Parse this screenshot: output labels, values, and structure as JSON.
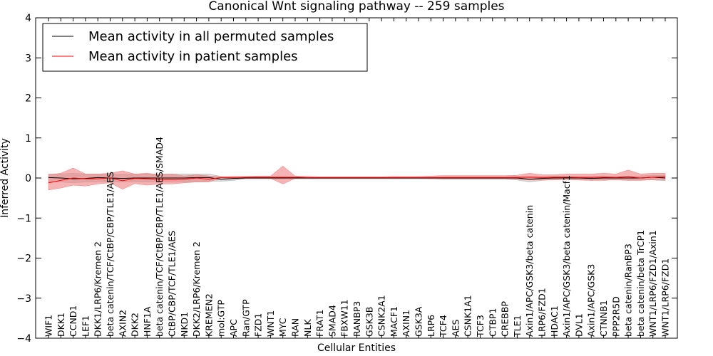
{
  "chart_data": {
    "type": "line",
    "title": "Canonical Wnt signaling pathway -- 259 samples",
    "xlabel": "Cellular Entities",
    "ylabel": "Inferred Activity",
    "ylim": [
      -4,
      4
    ],
    "yticks": [
      4,
      3,
      2,
      1,
      0,
      -1,
      -2,
      -3,
      -4
    ],
    "ytick_labels": [
      "4",
      "3",
      "2",
      "1",
      "0",
      "−1",
      "−2",
      "−3",
      "−4"
    ],
    "legend_position": "top-left",
    "grid": false,
    "categories": [
      "WIF1",
      "DKK1",
      "CCND1",
      "LEF1",
      "DKK1/LRP6/Kremen 2",
      "beta catenin/TCF/CtBP/CBP/TLE1/AES",
      "AXIN2",
      "DKK2",
      "HNF1A",
      "beta catenin/TCF/CtBP/CBP/TLE1/AES/SMAD4",
      "CtBP/CBP/TCF/TLE1/AES",
      "NKD1",
      "DKK2/LRP6/Kremen 2",
      "KREMEN2",
      "mol:GTP",
      "APC",
      "Ran/GTP",
      "FZD1",
      "WNT1",
      "MYC",
      "RAN",
      "NLK",
      "FRAT1",
      "SMAD4",
      "FBXW11",
      "RANBP3",
      "GSK3B",
      "CSNK2A1",
      "MACF1",
      "AXIN1",
      "GSK3A",
      "LRP6",
      "TCF4",
      "AES",
      "CSNK1A1",
      "TCF3",
      "CTBP1",
      "CREBBP",
      "TLE1",
      "Axin1/APC/GSK3/beta catenin",
      "LRP6/FZD1",
      "HDAC1",
      "Axin1/APC/GSK3/beta catenin/Macf1",
      "DVL1",
      "Axin1/APC/GSK3",
      "CTNNB1",
      "PPP2R5D",
      "beta catenin/RanBP3",
      "beta catenin/beta TrCP1",
      "WNT1/LRP6/FZD1/Axin1",
      "WNT1/LRP6/FZD1"
    ],
    "series": [
      {
        "name": "Mean activity in all permuted samples",
        "color": "#000000",
        "fill": "#b0b0b0",
        "values": [
          0.01,
          0.0,
          -0.02,
          -0.01,
          0.01,
          0.0,
          -0.01,
          0.0,
          0.0,
          0.0,
          0.0,
          0.0,
          0.01,
          0.01,
          -0.03,
          -0.01,
          0.0,
          0.0,
          0.0,
          0.0,
          0.0,
          0.0,
          0.0,
          0.0,
          0.0,
          0.0,
          0.0,
          0.0,
          0.0,
          0.0,
          0.0,
          0.0,
          0.0,
          0.0,
          0.0,
          0.0,
          0.0,
          0.0,
          0.0,
          -0.03,
          -0.01,
          0.0,
          0.0,
          0.0,
          -0.01,
          0.0,
          0.0,
          0.0,
          0.0,
          0.02,
          0.0
        ],
        "lower": [
          -0.1,
          -0.1,
          -0.12,
          -0.1,
          -0.1,
          -0.1,
          -0.1,
          -0.1,
          -0.1,
          -0.1,
          -0.1,
          -0.1,
          -0.1,
          -0.08,
          -0.08,
          -0.06,
          -0.02,
          -0.02,
          -0.02,
          -0.02,
          -0.02,
          -0.02,
          -0.02,
          -0.02,
          -0.02,
          -0.02,
          -0.02,
          -0.02,
          -0.02,
          -0.02,
          -0.02,
          -0.02,
          -0.03,
          -0.03,
          -0.03,
          -0.03,
          -0.03,
          -0.03,
          -0.05,
          -0.1,
          -0.06,
          -0.04,
          -0.04,
          -0.05,
          -0.06,
          -0.05,
          -0.05,
          -0.06,
          -0.05,
          -0.05,
          -0.07
        ],
        "upper": [
          0.1,
          0.1,
          0.12,
          0.1,
          0.1,
          0.1,
          0.1,
          0.1,
          0.1,
          0.1,
          0.1,
          0.1,
          0.1,
          0.1,
          0.04,
          0.03,
          0.02,
          0.02,
          0.02,
          0.02,
          0.02,
          0.02,
          0.02,
          0.02,
          0.02,
          0.02,
          0.02,
          0.02,
          0.02,
          0.02,
          0.02,
          0.02,
          0.03,
          0.03,
          0.03,
          0.03,
          0.03,
          0.03,
          0.05,
          0.04,
          0.04,
          0.04,
          0.04,
          0.05,
          0.05,
          0.05,
          0.05,
          0.05,
          0.05,
          0.07,
          0.07
        ]
      },
      {
        "name": "Mean activity in patient samples",
        "color": "#ff0000",
        "fill": "#f08080",
        "values": [
          -0.12,
          -0.06,
          0.0,
          -0.02,
          -0.02,
          0.0,
          -0.07,
          -0.01,
          -0.02,
          -0.04,
          -0.04,
          -0.03,
          0.0,
          -0.03,
          0.01,
          0.01,
          0.02,
          0.02,
          0.02,
          0.02,
          0.02,
          0.01,
          0.01,
          0.01,
          0.01,
          0.01,
          0.01,
          0.01,
          0.01,
          0.01,
          0.01,
          0.01,
          0.01,
          0.01,
          0.01,
          0.01,
          0.01,
          0.01,
          0.01,
          0.02,
          0.01,
          0.02,
          0.02,
          0.01,
          0.01,
          0.02,
          0.01,
          0.03,
          0.0,
          0.02,
          0.03
        ],
        "lower": [
          -0.3,
          -0.25,
          -0.18,
          -0.2,
          -0.15,
          -0.12,
          -0.28,
          -0.14,
          -0.18,
          -0.15,
          -0.15,
          -0.12,
          -0.1,
          -0.1,
          0.0,
          -0.02,
          -0.01,
          -0.01,
          -0.01,
          -0.15,
          -0.01,
          -0.01,
          -0.01,
          -0.01,
          -0.01,
          -0.01,
          -0.01,
          -0.01,
          -0.01,
          -0.01,
          -0.01,
          -0.02,
          -0.02,
          -0.02,
          -0.02,
          -0.02,
          -0.02,
          -0.02,
          -0.03,
          -0.05,
          -0.05,
          -0.05,
          -0.04,
          -0.05,
          -0.06,
          -0.06,
          -0.04,
          -0.06,
          -0.06,
          -0.04,
          -0.04
        ],
        "upper": [
          0.08,
          0.12,
          0.25,
          0.1,
          0.1,
          0.12,
          0.18,
          0.1,
          0.12,
          0.08,
          0.1,
          0.05,
          0.08,
          0.05,
          0.03,
          0.04,
          0.04,
          0.05,
          0.05,
          0.3,
          0.05,
          0.04,
          0.03,
          0.03,
          0.03,
          0.03,
          0.03,
          0.03,
          0.04,
          0.04,
          0.04,
          0.05,
          0.06,
          0.06,
          0.06,
          0.06,
          0.06,
          0.06,
          0.07,
          0.12,
          0.08,
          0.08,
          0.1,
          0.1,
          0.1,
          0.12,
          0.1,
          0.2,
          0.1,
          0.12,
          0.12
        ]
      }
    ]
  }
}
